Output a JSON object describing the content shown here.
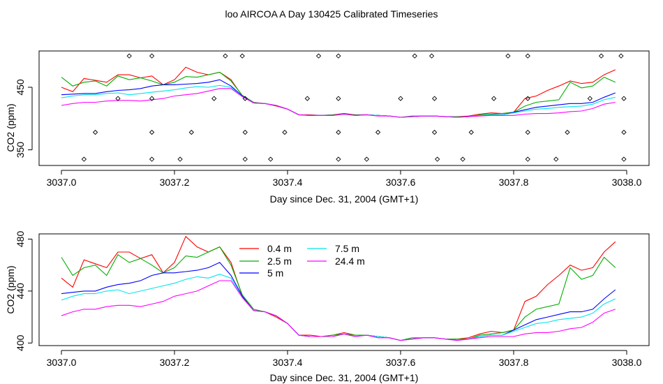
{
  "page": {
    "title": "loo AIRCOA A  Day 130425  Calibrated Timeseries"
  },
  "chart_data": [
    {
      "type": "line",
      "xlabel": "Day since Dec. 31, 2004 (GMT+1)",
      "ylabel": "CO2 (ppm)",
      "xlim": [
        3037.0,
        3038.0
      ],
      "ylim": [
        325,
        508
      ],
      "x_ticks": [
        "3037.0",
        "3037.2",
        "3037.4",
        "3037.6",
        "3037.8",
        "3038.0"
      ],
      "y_ticks": [
        "350",
        "450"
      ],
      "y_tick_values": [
        350,
        450
      ],
      "grid": false,
      "legend": "none",
      "series_ref": "shared_series",
      "markers": {
        "symbol": "open-diamond",
        "points": [
          [
            3037.12,
            500
          ],
          [
            3037.16,
            500
          ],
          [
            3037.29,
            500
          ],
          [
            3037.32,
            500
          ],
          [
            3037.455,
            500
          ],
          [
            3037.49,
            500
          ],
          [
            3037.625,
            500
          ],
          [
            3037.655,
            500
          ],
          [
            3037.79,
            500
          ],
          [
            3037.825,
            500
          ],
          [
            3037.955,
            500
          ],
          [
            3037.99,
            500
          ],
          [
            3037.1,
            432
          ],
          [
            3037.16,
            432
          ],
          [
            3037.27,
            432
          ],
          [
            3037.325,
            432
          ],
          [
            3037.435,
            432
          ],
          [
            3037.49,
            432
          ],
          [
            3037.6,
            432
          ],
          [
            3037.66,
            432
          ],
          [
            3037.765,
            432
          ],
          [
            3037.825,
            432
          ],
          [
            3037.935,
            432
          ],
          [
            3037.995,
            432
          ],
          [
            3037.06,
            378
          ],
          [
            3037.16,
            378
          ],
          [
            3037.23,
            378
          ],
          [
            3037.325,
            378
          ],
          [
            3037.395,
            378
          ],
          [
            3037.49,
            378
          ],
          [
            3037.56,
            378
          ],
          [
            3037.66,
            378
          ],
          [
            3037.725,
            378
          ],
          [
            3037.825,
            378
          ],
          [
            3037.895,
            378
          ],
          [
            3037.995,
            378
          ],
          [
            3037.04,
            335
          ],
          [
            3037.16,
            335
          ],
          [
            3037.21,
            335
          ],
          [
            3037.325,
            335
          ],
          [
            3037.37,
            335
          ],
          [
            3037.49,
            335
          ],
          [
            3037.54,
            335
          ],
          [
            3037.665,
            335
          ],
          [
            3037.71,
            335
          ],
          [
            3037.825,
            335
          ],
          [
            3037.875,
            335
          ],
          [
            3037.995,
            335
          ]
        ]
      }
    },
    {
      "type": "line",
      "xlabel": "Day since Dec. 31, 2004 (GMT+1)",
      "ylabel": "CO2 (ppm)",
      "xlim": [
        3037.0,
        3038.0
      ],
      "ylim": [
        398,
        484
      ],
      "x_ticks": [
        "3037.0",
        "3037.2",
        "3037.4",
        "3037.6",
        "3037.8",
        "3038.0"
      ],
      "y_ticks": [
        "400",
        "440",
        "480"
      ],
      "y_tick_values": [
        400,
        440,
        480
      ],
      "grid": false,
      "legend": "top-left",
      "series_ref": "shared_series"
    }
  ],
  "shared_series": {
    "x": [
      3037.0,
      3037.02,
      3037.04,
      3037.06,
      3037.08,
      3037.1,
      3037.12,
      3037.14,
      3037.16,
      3037.18,
      3037.2,
      3037.22,
      3037.24,
      3037.26,
      3037.28,
      3037.3,
      3037.32,
      3037.34,
      3037.36,
      3037.38,
      3037.4,
      3037.42,
      3037.44,
      3037.46,
      3037.48,
      3037.5,
      3037.52,
      3037.54,
      3037.56,
      3037.58,
      3037.6,
      3037.62,
      3037.64,
      3037.66,
      3037.68,
      3037.7,
      3037.72,
      3037.74,
      3037.76,
      3037.78,
      3037.8,
      3037.82,
      3037.84,
      3037.86,
      3037.88,
      3037.9,
      3037.92,
      3037.94,
      3037.96,
      3037.98
    ],
    "series": [
      {
        "name": "0.4 m",
        "color": "#ff0000",
        "values": [
          450,
          443,
          464,
          461,
          458,
          470,
          470,
          465,
          468,
          454,
          462,
          482,
          474,
          470,
          474,
          462,
          436,
          425,
          424,
          420,
          415,
          406,
          406,
          405,
          406,
          408,
          406,
          406,
          405,
          404,
          402,
          403,
          404,
          404,
          403,
          403,
          404,
          407,
          409,
          408,
          410,
          432,
          436,
          445,
          452,
          460,
          456,
          458,
          470,
          478
        ]
      },
      {
        "name": "2.5 m",
        "color": "#00b000",
        "values": [
          466,
          452,
          458,
          460,
          452,
          468,
          462,
          465,
          460,
          454,
          458,
          467,
          466,
          470,
          474,
          460,
          437,
          426,
          424,
          421,
          415,
          406,
          405,
          405,
          406,
          407,
          406,
          406,
          405,
          404,
          402,
          404,
          404,
          404,
          403,
          403,
          403,
          406,
          407,
          408,
          410,
          420,
          426,
          428,
          430,
          458,
          449,
          452,
          466,
          458
        ]
      },
      {
        "name": "5 m",
        "color": "#0000ff",
        "values": [
          438,
          439,
          440,
          440,
          443,
          445,
          446,
          448,
          452,
          454,
          454,
          455,
          456,
          458,
          462,
          452,
          436,
          425,
          424,
          421,
          415,
          406,
          405,
          405,
          405,
          407,
          405,
          406,
          405,
          404,
          402,
          403,
          404,
          404,
          403,
          402,
          403,
          405,
          406,
          406,
          410,
          414,
          418,
          420,
          422,
          424,
          424,
          426,
          434,
          441
        ]
      },
      {
        "name": "7.5 m",
        "color": "#00e5ee",
        "values": [
          433,
          436,
          438,
          438,
          440,
          441,
          438,
          440,
          442,
          444,
          446,
          449,
          451,
          450,
          453,
          450,
          435,
          425,
          424,
          421,
          415,
          406,
          405,
          405,
          405,
          407,
          405,
          406,
          405,
          404,
          402,
          403,
          404,
          404,
          403,
          402,
          403,
          405,
          406,
          406,
          409,
          412,
          415,
          416,
          418,
          419,
          420,
          423,
          430,
          434
        ]
      },
      {
        "name": "24.4 m",
        "color": "#ff00ff",
        "values": [
          421,
          424,
          426,
          426,
          428,
          429,
          429,
          428,
          430,
          432,
          436,
          438,
          440,
          444,
          448,
          448,
          435,
          425,
          424,
          421,
          415,
          406,
          405,
          405,
          405,
          407,
          405,
          406,
          404,
          404,
          402,
          403,
          404,
          404,
          403,
          402,
          403,
          404,
          405,
          405,
          405,
          407,
          408,
          408,
          409,
          411,
          412,
          416,
          423,
          426
        ]
      }
    ]
  }
}
